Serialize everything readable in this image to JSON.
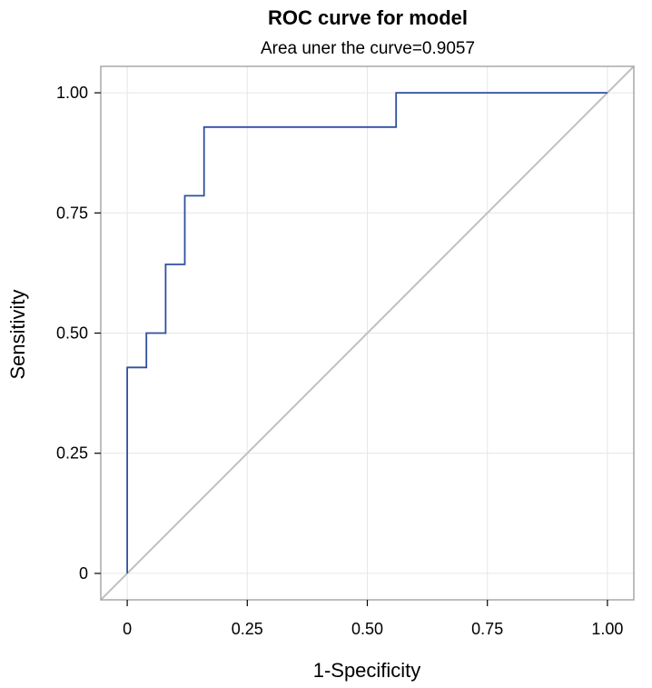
{
  "chart_data": {
    "type": "line",
    "title": "ROC curve for model",
    "subtitle": "Area uner the curve=0.9057",
    "xlabel": "1-Specificity",
    "ylabel": "Sensitivity",
    "xlim": [
      -0.055,
      1.055
    ],
    "ylim": [
      -0.055,
      1.055
    ],
    "grid": true,
    "x_ticks": [
      0,
      0.25,
      0.5,
      0.75,
      1.0
    ],
    "x_tick_labels": [
      "0",
      "0.25",
      "0.50",
      "0.75",
      "1.00"
    ],
    "y_ticks": [
      0,
      0.25,
      0.5,
      0.75,
      1.0
    ],
    "y_tick_labels": [
      "0",
      "0.25",
      "0.50",
      "0.75",
      "1.00"
    ],
    "colors": {
      "roc": "#2f4fa0",
      "reference": "#c0c0c0",
      "grid": "#e6e6e6",
      "frame": "#a8a8a8"
    },
    "series": [
      {
        "name": "ROC curve",
        "step": true,
        "x": [
          0,
          0,
          0.04,
          0.04,
          0.08,
          0.08,
          0.12,
          0.12,
          0.16,
          0.16,
          0.56,
          0.56,
          1.0
        ],
        "y": [
          0,
          0.4286,
          0.4286,
          0.5,
          0.5,
          0.6429,
          0.6429,
          0.7857,
          0.7857,
          0.9286,
          0.9286,
          1.0,
          1.0
        ]
      },
      {
        "name": "Reference line",
        "x": [
          -0.055,
          1.055
        ],
        "y": [
          -0.055,
          1.055
        ]
      }
    ]
  }
}
